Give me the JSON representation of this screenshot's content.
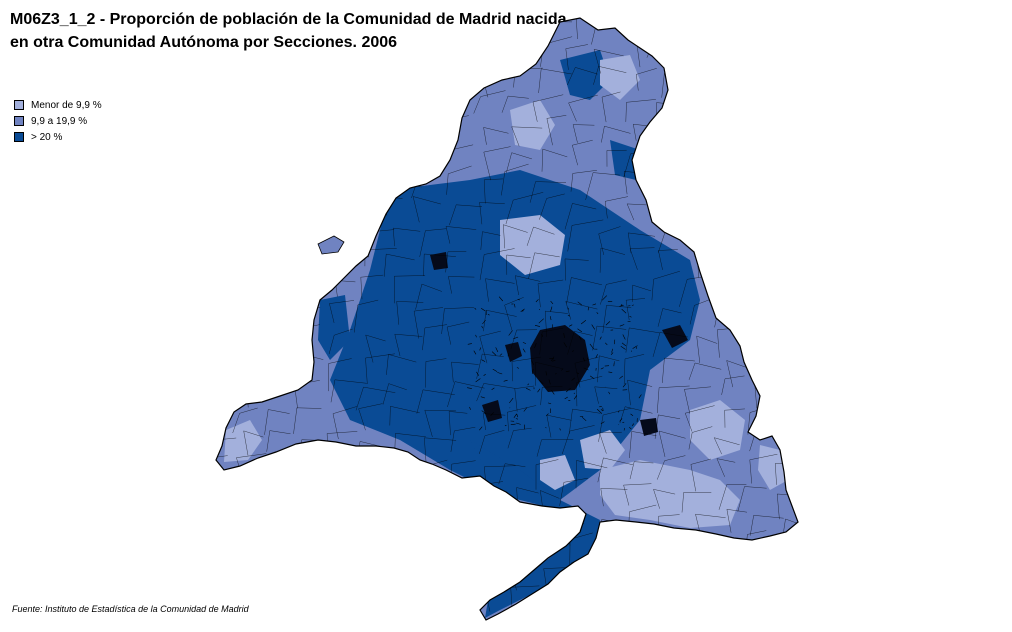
{
  "title": {
    "line1": "M06Z3_1_2 - Proporción de población de la Comunidad de Madrid nacida",
    "line2": "en otra Comunidad Autónoma por Secciones. 2006"
  },
  "legend": [
    {
      "label": "Menor de 9,9 %",
      "color": "#a3b0dc"
    },
    {
      "label": "9,9  a 19,9 %",
      "color": "#7083c1"
    },
    {
      "label": "> 20 %",
      "color": "#0a4b95"
    }
  ],
  "source": "Fuente: Instituto de Estadística de la Comunidad de Madrid",
  "colors": {
    "outline": "#000000",
    "urban_core": "#050a1a"
  }
}
